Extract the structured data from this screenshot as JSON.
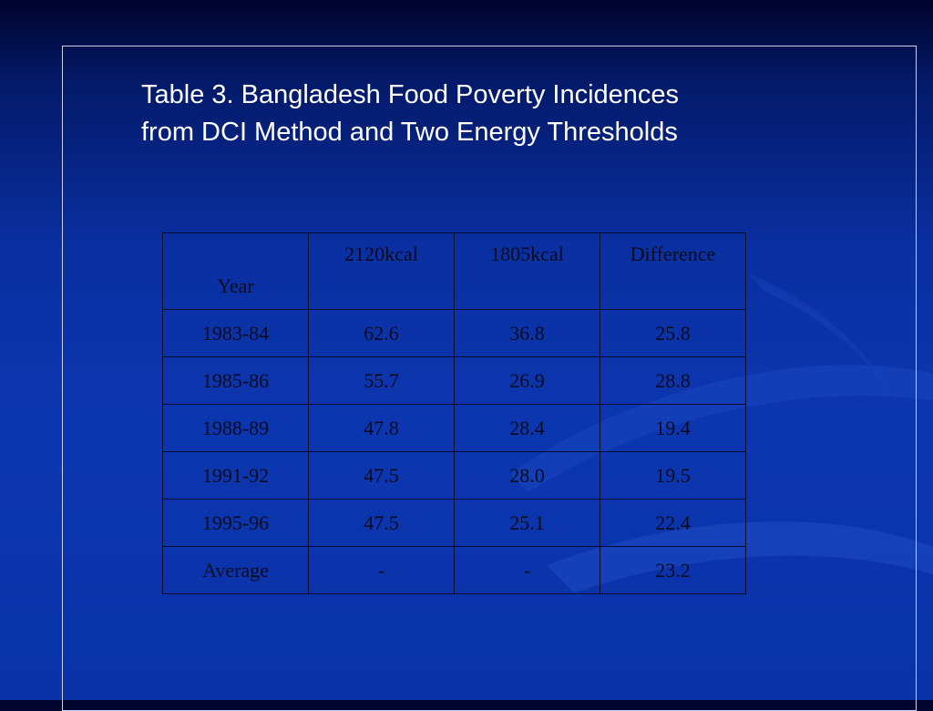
{
  "title": {
    "line1": "Table 3. Bangladesh Food Poverty Incidences",
    "line2": "from DCI Method and Two Energy Thresholds"
  },
  "table": {
    "headers": [
      "Year",
      "2120kcal",
      "1805kcal",
      "Difference"
    ],
    "rows": [
      [
        "1983-84",
        "62.6",
        "36.8",
        "25.8"
      ],
      [
        "1985-86",
        "55.7",
        "26.9",
        "28.8"
      ],
      [
        "1988-89",
        "47.8",
        "28.4",
        "19.4"
      ],
      [
        "1991-92",
        "47.5",
        "28.0",
        "19.5"
      ],
      [
        "1995-96",
        "47.5",
        "25.1",
        "22.4"
      ],
      [
        "Average",
        "-",
        "-",
        "23.2"
      ]
    ]
  },
  "colors": {
    "background_top": "#01032a",
    "background_main": "#0c36b0",
    "frame_border": "#c9d2ee",
    "title_text": "#ffffff",
    "table_text": "#0b0b1e"
  }
}
